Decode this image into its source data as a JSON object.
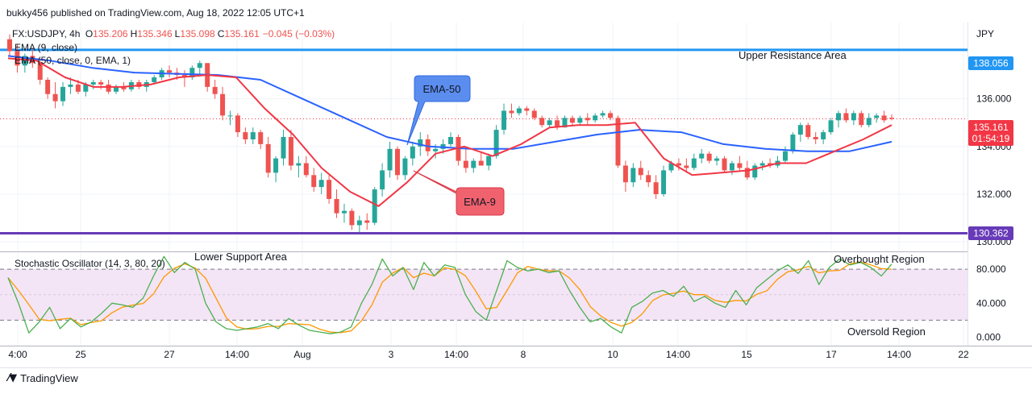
{
  "header": {
    "publish_line": "bukky456 published on TradingView.com, Aug 18, 2022 12:05 UTC+1"
  },
  "legend": {
    "symbol_line_prefix": "FX:USDJPY, 4h",
    "ohlc": [
      {
        "k": "O",
        "v": "135.206"
      },
      {
        "k": "H",
        "v": "135.346"
      },
      {
        "k": "L",
        "v": "135.098"
      },
      {
        "k": "C",
        "v": "135.161"
      }
    ],
    "change": "−0.045 (−0.03%)",
    "ema9_label": "EMA (9, close)",
    "ema50_label": "EMA (50, close, 0, EMA, 1)",
    "stoch_label": "Stochastic Oscillator (14, 3, 80, 20)"
  },
  "annotations": {
    "upper_resistance": "Upper Resistance Area",
    "lower_support": "Lower Support Area",
    "ema50_callout": "EMA-50",
    "ema9_callout": "EMA-9",
    "overbought": "Overbought Region",
    "oversold": "Oversold Region"
  },
  "price_axis": {
    "currency": "JPY",
    "ticks": [
      "136.000",
      "134.000",
      "132.000",
      "130.000"
    ],
    "resistance_label": "138.056",
    "support_label": "130.362",
    "last_price_label": "135.161",
    "countdown_label": "01:54:19"
  },
  "stoch_axis": {
    "ticks": [
      "80.000",
      "40.000",
      "0.000"
    ]
  },
  "time_axis": {
    "labels": [
      "4:00",
      "25",
      "27",
      "14:00",
      "Aug",
      "3",
      "14:00",
      "8",
      "10",
      "14:00",
      "15",
      "17",
      "14:00",
      "22"
    ]
  },
  "colors": {
    "bull": "#26a69a",
    "bear": "#ef5350",
    "ema9": "#f23645",
    "ema50": "#2962ff",
    "resistance": "#2196f3",
    "support": "#673ab7",
    "stoch_k": "#4caf50",
    "stoch_d": "#ff9800",
    "stoch_band": "#f3e5f5",
    "callout_ema50": "#5b8def",
    "callout_ema9": "#f0626e"
  },
  "footer": {
    "brand": "TradingView"
  },
  "chart_data": [
    {
      "type": "candlestick",
      "symbol": "FX:USDJPY",
      "timeframe": "4h",
      "ylim": [
        129.6,
        139.2
      ],
      "x_labels": [
        "4:00",
        "25",
        "27",
        "14:00",
        "Aug",
        "3",
        "14:00",
        "8",
        "10",
        "14:00",
        "15",
        "17",
        "14:00",
        "22"
      ],
      "horizontal_levels": [
        {
          "name": "Upper Resistance Area",
          "value": 138.056
        },
        {
          "name": "Lower Support Area",
          "value": 130.362
        }
      ],
      "ohlc": [
        [
          138.5,
          138.7,
          137.8,
          138.0
        ],
        [
          138.0,
          138.3,
          137.1,
          137.4
        ],
        [
          137.4,
          137.9,
          137.1,
          137.8
        ],
        [
          137.8,
          138.1,
          137.3,
          137.5
        ],
        [
          137.5,
          137.7,
          136.6,
          136.8
        ],
        [
          136.8,
          136.9,
          136.0,
          136.2
        ],
        [
          136.2,
          136.7,
          135.6,
          135.9
        ],
        [
          135.9,
          136.7,
          135.7,
          136.5
        ],
        [
          136.5,
          136.9,
          136.2,
          136.6
        ],
        [
          136.6,
          136.8,
          136.2,
          136.3
        ],
        [
          136.3,
          136.7,
          136.1,
          136.6
        ],
        [
          136.6,
          136.8,
          136.4,
          136.7
        ],
        [
          136.7,
          136.8,
          136.4,
          136.6
        ],
        [
          136.6,
          136.8,
          136.2,
          136.3
        ],
        [
          136.3,
          136.6,
          136.2,
          136.5
        ],
        [
          136.5,
          136.7,
          136.3,
          136.4
        ],
        [
          136.4,
          136.8,
          136.3,
          136.7
        ],
        [
          136.7,
          136.8,
          136.4,
          136.5
        ],
        [
          136.5,
          136.8,
          136.3,
          136.7
        ],
        [
          136.7,
          137.0,
          136.6,
          136.9
        ],
        [
          136.9,
          137.3,
          136.8,
          137.2
        ],
        [
          137.2,
          137.4,
          136.9,
          137.1
        ],
        [
          137.1,
          137.3,
          136.8,
          137.0
        ],
        [
          137.0,
          137.2,
          136.5,
          136.9
        ],
        [
          136.9,
          137.4,
          136.8,
          137.3
        ],
        [
          137.3,
          137.6,
          137.0,
          137.5
        ],
        [
          137.5,
          137.5,
          136.3,
          136.5
        ],
        [
          136.5,
          136.8,
          136.0,
          136.2
        ],
        [
          136.2,
          136.5,
          135.1,
          135.3
        ],
        [
          135.3,
          135.5,
          134.9,
          135.3
        ],
        [
          135.3,
          135.4,
          134.4,
          134.6
        ],
        [
          134.6,
          134.8,
          134.1,
          134.3
        ],
        [
          134.3,
          134.8,
          134.1,
          134.6
        ],
        [
          134.6,
          134.7,
          133.9,
          134.1
        ],
        [
          134.1,
          134.4,
          132.7,
          132.9
        ],
        [
          132.9,
          133.6,
          132.5,
          133.5
        ],
        [
          133.5,
          134.7,
          133.2,
          134.4
        ],
        [
          134.4,
          134.7,
          133.0,
          133.2
        ],
        [
          133.2,
          133.6,
          132.7,
          133.3
        ],
        [
          133.3,
          133.6,
          132.7,
          132.8
        ],
        [
          132.8,
          133.1,
          132.1,
          132.3
        ],
        [
          132.3,
          132.9,
          132.0,
          132.6
        ],
        [
          132.6,
          132.8,
          131.6,
          131.8
        ],
        [
          131.8,
          132.2,
          131.0,
          131.2
        ],
        [
          131.2,
          131.6,
          130.8,
          131.3
        ],
        [
          131.3,
          131.4,
          130.5,
          130.7
        ],
        [
          130.7,
          131.1,
          130.4,
          130.9
        ],
        [
          130.9,
          131.2,
          130.5,
          130.8
        ],
        [
          130.8,
          132.3,
          130.7,
          132.2
        ],
        [
          132.2,
          133.3,
          131.9,
          133.0
        ],
        [
          133.0,
          134.2,
          132.7,
          133.9
        ],
        [
          133.9,
          134.0,
          132.6,
          132.8
        ],
        [
          132.8,
          133.6,
          132.6,
          133.5
        ],
        [
          133.5,
          134.2,
          133.2,
          134.0
        ],
        [
          134.0,
          134.6,
          133.6,
          134.3
        ],
        [
          134.3,
          134.5,
          133.6,
          133.8
        ],
        [
          133.8,
          134.1,
          133.5,
          133.9
        ],
        [
          133.9,
          134.3,
          133.7,
          134.1
        ],
        [
          134.1,
          134.6,
          134.0,
          134.4
        ],
        [
          134.4,
          134.5,
          133.2,
          133.4
        ],
        [
          133.4,
          133.9,
          132.9,
          133.1
        ],
        [
          133.1,
          133.5,
          132.9,
          133.4
        ],
        [
          133.4,
          133.8,
          133.2,
          133.2
        ],
        [
          133.2,
          133.7,
          133.0,
          133.6
        ],
        [
          133.6,
          134.9,
          133.5,
          134.7
        ],
        [
          134.7,
          135.8,
          134.5,
          135.5
        ],
        [
          135.5,
          135.8,
          135.2,
          135.4
        ],
        [
          135.4,
          135.7,
          135.3,
          135.6
        ],
        [
          135.6,
          135.7,
          135.3,
          135.5
        ],
        [
          135.5,
          135.6,
          135.1,
          135.2
        ],
        [
          135.2,
          135.3,
          134.8,
          134.9
        ],
        [
          134.9,
          135.2,
          134.8,
          135.1
        ],
        [
          135.1,
          135.3,
          134.7,
          134.8
        ],
        [
          134.8,
          135.3,
          134.8,
          135.2
        ],
        [
          135.2,
          135.3,
          134.9,
          135.0
        ],
        [
          135.0,
          135.3,
          134.9,
          135.2
        ],
        [
          135.2,
          135.4,
          134.9,
          135.1
        ],
        [
          135.1,
          135.4,
          135.0,
          135.3
        ],
        [
          135.3,
          135.5,
          135.2,
          135.4
        ],
        [
          135.4,
          135.5,
          135.1,
          135.2
        ],
        [
          135.2,
          135.3,
          133.1,
          133.2
        ],
        [
          133.2,
          133.4,
          132.1,
          132.5
        ],
        [
          132.5,
          133.3,
          132.3,
          133.1
        ],
        [
          133.1,
          133.4,
          132.6,
          132.8
        ],
        [
          132.8,
          133.0,
          132.3,
          132.5
        ],
        [
          132.5,
          132.8,
          131.8,
          132.0
        ],
        [
          132.0,
          133.2,
          131.9,
          133.0
        ],
        [
          133.0,
          133.4,
          132.9,
          133.3
        ],
        [
          133.3,
          133.5,
          133.0,
          133.2
        ],
        [
          133.2,
          133.5,
          132.9,
          133.1
        ],
        [
          133.1,
          133.7,
          133.0,
          133.5
        ],
        [
          133.5,
          133.9,
          133.3,
          133.7
        ],
        [
          133.7,
          133.8,
          133.3,
          133.4
        ],
        [
          133.4,
          133.6,
          133.2,
          133.5
        ],
        [
          133.5,
          133.6,
          132.9,
          133.0
        ],
        [
          133.0,
          133.4,
          132.8,
          133.3
        ],
        [
          133.3,
          133.6,
          133.0,
          133.1
        ],
        [
          133.1,
          133.4,
          132.6,
          132.7
        ],
        [
          132.7,
          133.3,
          132.6,
          133.2
        ],
        [
          133.2,
          133.4,
          133.0,
          133.3
        ],
        [
          133.3,
          133.5,
          133.1,
          133.2
        ],
        [
          133.2,
          133.6,
          133.1,
          133.4
        ],
        [
          133.4,
          134.0,
          133.3,
          133.8
        ],
        [
          133.8,
          134.6,
          133.7,
          134.5
        ],
        [
          134.5,
          135.0,
          134.2,
          134.9
        ],
        [
          134.9,
          135.0,
          134.3,
          134.4
        ],
        [
          134.4,
          134.6,
          134.1,
          134.3
        ],
        [
          134.3,
          134.7,
          134.1,
          134.6
        ],
        [
          134.6,
          135.2,
          134.5,
          135.1
        ],
        [
          135.1,
          135.5,
          134.8,
          135.4
        ],
        [
          135.4,
          135.6,
          135.0,
          135.1
        ],
        [
          135.1,
          135.5,
          134.9,
          135.4
        ],
        [
          135.4,
          135.5,
          134.8,
          134.9
        ],
        [
          134.9,
          135.4,
          134.8,
          135.2
        ],
        [
          135.2,
          135.4,
          135.0,
          135.3
        ],
        [
          135.3,
          135.5,
          135.0,
          135.1
        ],
        [
          135.206,
          135.346,
          135.098,
          135.161
        ]
      ],
      "ema9": [
        137.7,
        137.6,
        136.9,
        136.5,
        136.5,
        136.6,
        136.9,
        137.0,
        136.9,
        135.6,
        134.5,
        133.1,
        132.1,
        131.5,
        132.5,
        133.7,
        134.0,
        133.6,
        134.1,
        134.8,
        134.9,
        134.9,
        135.0,
        133.5,
        132.8,
        132.9,
        133.0,
        133.3,
        133.3,
        133.8,
        134.3,
        134.9
      ],
      "ema50": [
        137.8,
        137.6,
        137.3,
        137.1,
        137.05,
        137.0,
        136.8,
        136.0,
        135.2,
        134.4,
        134.0,
        133.9,
        133.9,
        134.2,
        134.5,
        134.7,
        134.6,
        134.1,
        133.9,
        133.8,
        133.8,
        134.2
      ],
      "stochastic": {
        "ylim": [
          -10,
          100
        ],
        "bands": {
          "upper": 80,
          "lower": 20
        },
        "k": [
          70,
          40,
          5,
          18,
          35,
          10,
          22,
          12,
          18,
          28,
          40,
          38,
          35,
          46,
          72,
          95,
          76,
          88,
          80,
          40,
          18,
          10,
          8,
          10,
          12,
          16,
          10,
          22,
          14,
          8,
          6,
          4,
          6,
          12,
          40,
          62,
          92,
          72,
          82,
          56,
          88,
          72,
          85,
          82,
          50,
          30,
          20,
          55,
          90,
          82,
          78,
          80,
          76,
          78,
          55,
          35,
          18,
          22,
          12,
          5,
          35,
          42,
          52,
          55,
          48,
          60,
          42,
          48,
          40,
          35,
          55,
          38,
          58,
          68,
          78,
          85,
          75,
          90,
          62,
          82,
          92,
          85,
          88,
          82,
          72,
          86
        ]
      }
    }
  ]
}
